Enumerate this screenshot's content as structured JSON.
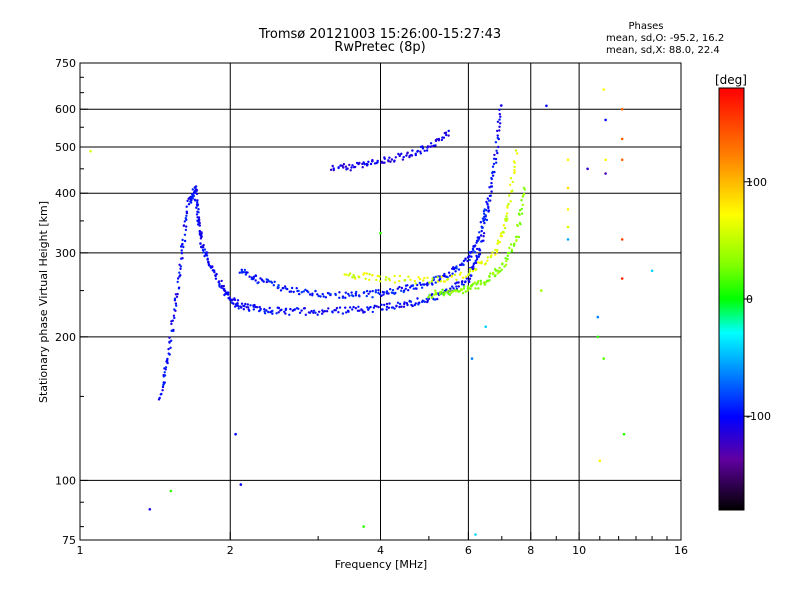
{
  "chart_data": {
    "type": "scatter",
    "title": "Tromsø 20121003 15:26:00-15:27:43",
    "subtitle": "RwPretec (8p)",
    "xlabel": "Frequency [MHz]",
    "ylabel": "Stationary phase Virtual Height [km]",
    "x_scale": "log",
    "y_scale": "log",
    "xlim": [
      1,
      16
    ],
    "ylim": [
      75,
      750
    ],
    "x_ticks": [
      1,
      2,
      4,
      6,
      8,
      10,
      16
    ],
    "y_ticks": [
      75,
      100,
      200,
      300,
      400,
      500,
      600,
      750
    ],
    "grid": true,
    "legend_position": "top-right",
    "phases": {
      "title": "Phases",
      "o_line": "mean, sd,O: -95.2, 16.2",
      "x_line": "mean, sd,X:  88.0, 22.4"
    },
    "colorbar": {
      "label": "[deg]",
      "range": [
        -180,
        180
      ],
      "ticks": [
        100,
        0,
        -100
      ]
    },
    "traces": [
      {
        "name": "",
        "color_deg": -100,
        "x": [
          1.45,
          1.5,
          1.55,
          1.6,
          1.65,
          1.7,
          1.72,
          1.75,
          1.8,
          1.9,
          2.0,
          2.1,
          2.3,
          2.6,
          3.0,
          3.5,
          4.0,
          4.5,
          5.0,
          5.5,
          6.0,
          6.3,
          6.6,
          6.8,
          7.0
        ],
        "y": [
          150,
          180,
          230,
          300,
          380,
          410,
          360,
          320,
          290,
          260,
          240,
          232,
          228,
          226,
          226,
          227,
          230,
          234,
          240,
          250,
          265,
          300,
          380,
          480,
          620
        ]
      },
      {
        "name": "",
        "color_deg": -95,
        "x": [
          2.1,
          2.3,
          2.6,
          3.0,
          3.5,
          4.0,
          4.5,
          5.0,
          5.5,
          6.0,
          6.3,
          6.6
        ],
        "y": [
          275,
          262,
          252,
          246,
          244,
          247,
          252,
          260,
          272,
          290,
          320,
          400
        ]
      },
      {
        "name": "",
        "color_deg": -110,
        "x": [
          3.2,
          3.6,
          4.0,
          4.5,
          5.0,
          5.5
        ],
        "y": [
          450,
          456,
          465,
          480,
          500,
          540
        ]
      },
      {
        "name": "",
        "color_deg": 60,
        "x": [
          5.0,
          5.5,
          6.0,
          6.5,
          7.0,
          7.5,
          7.8
        ],
        "y": [
          245,
          248,
          252,
          262,
          280,
          320,
          420
        ]
      },
      {
        "name": "",
        "color_deg": 90,
        "x": [
          3.4,
          4.0,
          5.0,
          6.0,
          6.8,
          7.2,
          7.5
        ],
        "y": [
          270,
          265,
          262,
          270,
          300,
          360,
          500
        ]
      }
    ],
    "scatter_points": [
      {
        "x": 1.05,
        "y": 490,
        "color_deg": 90
      },
      {
        "x": 1.38,
        "y": 87,
        "color_deg": -110
      },
      {
        "x": 1.52,
        "y": 95,
        "color_deg": 20
      },
      {
        "x": 2.05,
        "y": 125,
        "color_deg": -100
      },
      {
        "x": 2.1,
        "y": 98,
        "color_deg": -100
      },
      {
        "x": 3.7,
        "y": 80,
        "color_deg": 20
      },
      {
        "x": 4.0,
        "y": 330,
        "color_deg": 20
      },
      {
        "x": 6.1,
        "y": 180,
        "color_deg": -60
      },
      {
        "x": 6.2,
        "y": 77,
        "color_deg": -40
      },
      {
        "x": 6.5,
        "y": 210,
        "color_deg": -40
      },
      {
        "x": 8.4,
        "y": 250,
        "color_deg": 70
      },
      {
        "x": 8.6,
        "y": 610,
        "color_deg": -100
      },
      {
        "x": 9.5,
        "y": 470,
        "color_deg": 100
      },
      {
        "x": 9.5,
        "y": 410,
        "color_deg": 110
      },
      {
        "x": 9.5,
        "y": 370,
        "color_deg": 100
      },
      {
        "x": 9.5,
        "y": 340,
        "color_deg": 90
      },
      {
        "x": 9.5,
        "y": 320,
        "color_deg": -50
      },
      {
        "x": 10.4,
        "y": 450,
        "color_deg": -120
      },
      {
        "x": 10.9,
        "y": 200,
        "color_deg": 20
      },
      {
        "x": 10.9,
        "y": 220,
        "color_deg": -60
      },
      {
        "x": 11.2,
        "y": 180,
        "color_deg": 40
      },
      {
        "x": 11.2,
        "y": 660,
        "color_deg": 100
      },
      {
        "x": 11.3,
        "y": 570,
        "color_deg": -100
      },
      {
        "x": 11.3,
        "y": 440,
        "color_deg": -130
      },
      {
        "x": 11.3,
        "y": 470,
        "color_deg": 100
      },
      {
        "x": 11.0,
        "y": 110,
        "color_deg": 100
      },
      {
        "x": 12.2,
        "y": 520,
        "color_deg": 150
      },
      {
        "x": 12.2,
        "y": 470,
        "color_deg": 150
      },
      {
        "x": 12.2,
        "y": 600,
        "color_deg": 150
      },
      {
        "x": 12.2,
        "y": 320,
        "color_deg": 160
      },
      {
        "x": 12.2,
        "y": 265,
        "color_deg": 170
      },
      {
        "x": 12.3,
        "y": 125,
        "color_deg": 20
      },
      {
        "x": 14.0,
        "y": 275,
        "color_deg": -40
      }
    ]
  }
}
